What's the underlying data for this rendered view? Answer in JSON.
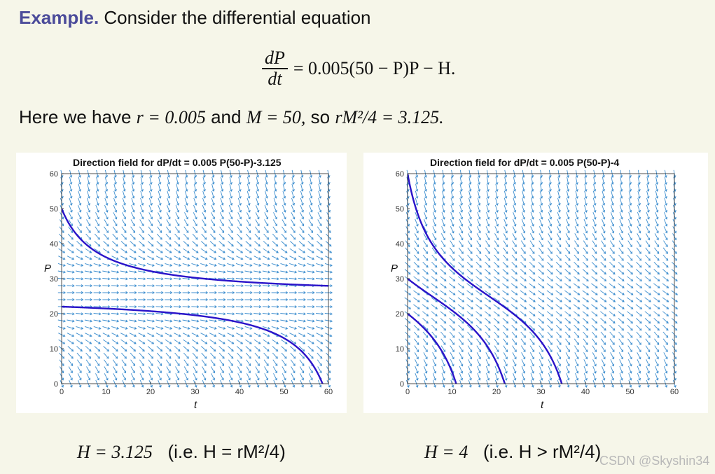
{
  "intro": {
    "keyword": "Example.",
    "text": "Consider the differential equation"
  },
  "equation": {
    "numerator": "dP",
    "denominator": "dt",
    "rhs": "= 0.005(50 − P)P − H."
  },
  "params": {
    "prefix": "Here we have",
    "r_expr": "r = 0.005",
    "and": "and",
    "m_expr": "M = 50,",
    "so": "so",
    "result_expr": "rM²/4 = 3.125."
  },
  "captions": [
    {
      "expr": "H = 3.125",
      "note": "(i.e. H = rM²/4)"
    },
    {
      "expr": "H = 4",
      "note": "(i.e. H > rM²/4)"
    }
  ],
  "watermark": "CSDN @Skyshin34",
  "colors": {
    "arrow": "#3f8fcf",
    "curve": "#2a13c9",
    "keyword": "#4b4b9a"
  },
  "chart_data": [
    {
      "type": "line",
      "title": "Direction field for dP/dt = 0.005 P(50-P)-3.125",
      "xlabel": "t",
      "ylabel": "P",
      "xlim": [
        0,
        60
      ],
      "ylim": [
        0,
        60
      ],
      "xticks": [
        0,
        10,
        20,
        30,
        40,
        50,
        60
      ],
      "yticks": [
        0,
        10,
        20,
        30,
        40,
        50,
        60
      ],
      "r": 0.005,
      "M": 50,
      "H": 3.125,
      "series": [
        {
          "p0": 50,
          "x": [
            0,
            5,
            10,
            20,
            30,
            40,
            50,
            60
          ],
          "y": [
            50,
            43.6,
            39.6,
            34.6,
            31.9,
            30.1,
            28.9,
            28.0
          ]
        },
        {
          "p0": 22,
          "x": [
            0,
            10,
            20,
            30,
            40,
            50,
            55,
            57
          ],
          "y": [
            22,
            21.6,
            20.9,
            20.0,
            18.5,
            14.6,
            8.5,
            0
          ]
        }
      ]
    },
    {
      "type": "line",
      "title": "Direction field for dP/dt = 0.005 P(50-P)-4",
      "xlabel": "t",
      "ylabel": "P",
      "xlim": [
        0,
        60
      ],
      "ylim": [
        0,
        60
      ],
      "xticks": [
        0,
        10,
        20,
        30,
        40,
        50,
        60
      ],
      "yticks": [
        0,
        10,
        20,
        30,
        40,
        50,
        60
      ],
      "r": 0.005,
      "M": 50,
      "H": 4,
      "series": [
        {
          "p0": 60,
          "x": [
            0,
            5,
            10,
            15,
            20,
            25,
            30,
            35
          ],
          "y": [
            60,
            43.0,
            33.5,
            28.0,
            23.0,
            17.0,
            8.5,
            0
          ]
        },
        {
          "p0": 30,
          "x": [
            0,
            5,
            10,
            15,
            20,
            22
          ],
          "y": [
            30,
            25.7,
            20.5,
            14.6,
            5.0,
            0
          ]
        },
        {
          "p0": 20,
          "x": [
            0,
            4,
            8,
            11
          ],
          "y": [
            20,
            14.5,
            7.6,
            0
          ]
        }
      ]
    }
  ]
}
